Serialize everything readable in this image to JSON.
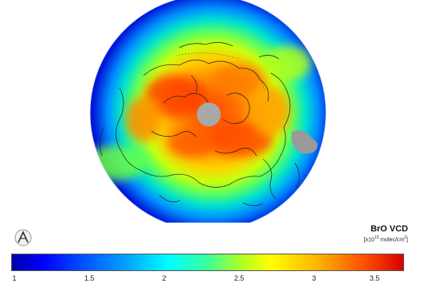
{
  "colorbar": {
    "title": "BrO VCD",
    "units_prefix": "[x10",
    "units_exponent": "13",
    "units_suffix": " molec/cm",
    "units_power": "2",
    "units_close": "]",
    "ticks": [
      "1",
      "1.5",
      "2",
      "2.5",
      "3",
      "3.5"
    ],
    "colors": [
      "#0000a8",
      "#0000ff",
      "#00a8ff",
      "#00ffff",
      "#a8ff28",
      "#ffff00",
      "#ffb400",
      "#ff5000",
      "#d80000"
    ]
  },
  "map": {
    "projection": "polar-stereographic",
    "hemisphere": "northern",
    "missing_data_color": "#a8a8a8",
    "coastline_color": "#222222"
  },
  "logo": {
    "icon": "institution-logo-icon"
  }
}
